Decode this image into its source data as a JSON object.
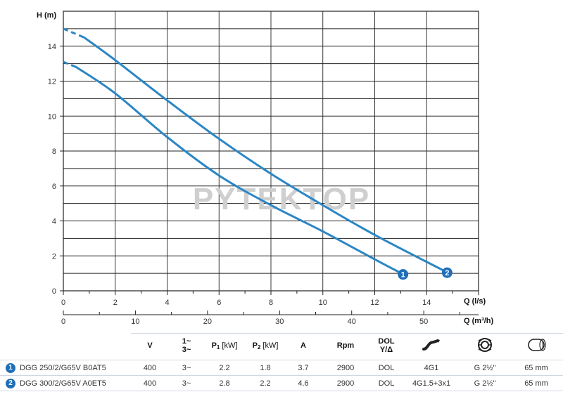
{
  "chart_data": {
    "type": "line",
    "watermark": "PYTEKTOP",
    "ylabel": "H (m)",
    "xlabel": "Q (l/s)",
    "x2label": "Q (m³/h)",
    "xlim": [
      0,
      16
    ],
    "ylim": [
      0,
      16
    ],
    "yticks": [
      0,
      2,
      4,
      6,
      8,
      10,
      12,
      14
    ],
    "xticks": [
      0,
      2,
      4,
      6,
      8,
      10,
      12,
      14
    ],
    "x2ticks": [
      0,
      10,
      20,
      30,
      40,
      50
    ],
    "grid": true,
    "series": [
      {
        "name": "1",
        "x": [
          0.5,
          2,
          4,
          6,
          8,
          10,
          12,
          12.9
        ],
        "y": [
          12.8,
          11.3,
          8.8,
          6.6,
          4.9,
          3.4,
          1.8,
          1.1
        ],
        "extrapolated": {
          "x": [
            0,
            0.5
          ],
          "y": [
            13.1,
            12.8
          ]
        }
      },
      {
        "name": "2",
        "x": [
          0.8,
          2,
          4,
          6,
          8,
          10,
          12,
          14.6
        ],
        "y": [
          14.5,
          13.2,
          10.9,
          8.7,
          6.7,
          4.9,
          3.2,
          1.2
        ],
        "extrapolated": {
          "x": [
            0,
            0.8
          ],
          "y": [
            15.0,
            14.5
          ]
        }
      }
    ]
  },
  "table": {
    "headers": {
      "v": "V",
      "phase_top": "1~",
      "phase_bottom": "3~",
      "p1_letter": "P",
      "p1_sub": "1",
      "p1_unit": "[kW]",
      "p2_letter": "P",
      "p2_sub": "2",
      "p2_unit": "[kW]",
      "a": "A",
      "rpm": "Rpm",
      "start_top": "DOL",
      "start_bottom": "Y/Δ",
      "cable_icon": "cable-icon",
      "thread_icon": "threaded-outlet-icon",
      "outlet_icon": "outlet-diameter-icon"
    },
    "rows": [
      {
        "num": "1",
        "model": "DGG 250/2/G65V B0AT5",
        "v": "400",
        "phase": "3~",
        "p1": "2.2",
        "p2": "1.8",
        "a": "3.7",
        "rpm": "2900",
        "start": "DOL",
        "cable": "4G1",
        "thread": "G 2½\"",
        "outlet": "65 mm"
      },
      {
        "num": "2",
        "model": "DGG 300/2/G65V A0ET5",
        "v": "400",
        "phase": "3~",
        "p1": "2.8",
        "p2": "2.2",
        "a": "4.6",
        "rpm": "2900",
        "start": "DOL",
        "cable": "4G1.5+3x1",
        "thread": "G 2½\"",
        "outlet": "65 mm"
      }
    ]
  },
  "colors": {
    "curve": "#2b86c5",
    "badge": "#1f6fb8",
    "grid": "#222222"
  }
}
